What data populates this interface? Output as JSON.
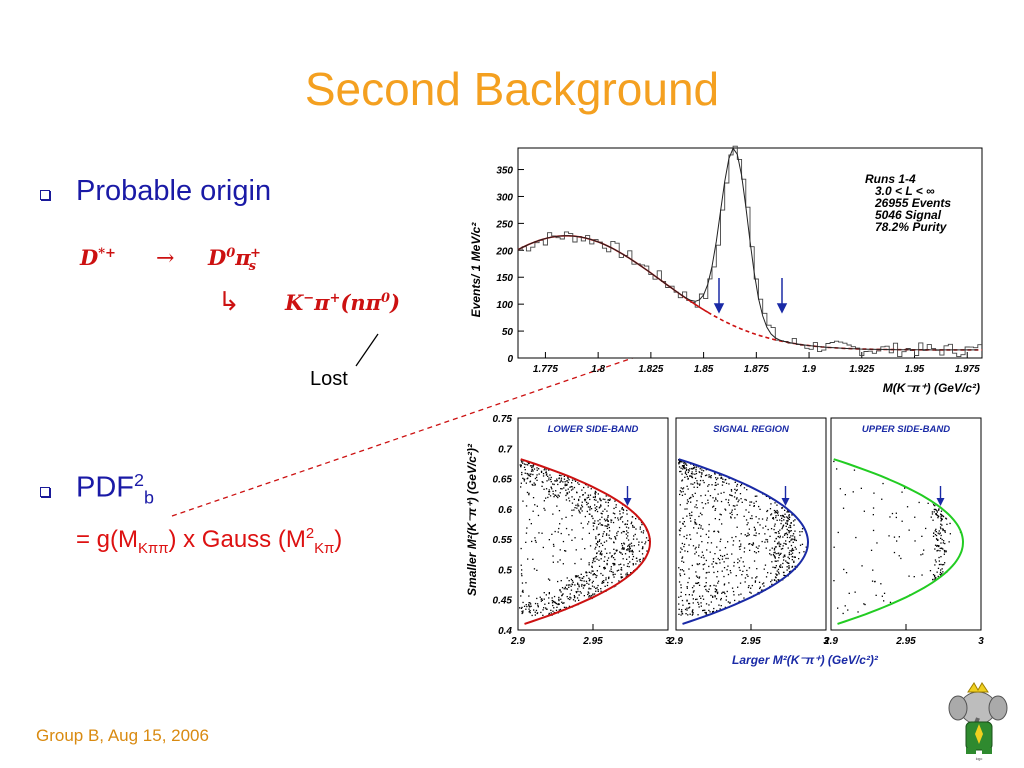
{
  "slide": {
    "title": "Second Background",
    "footer": "Group B, Aug 15, 2006"
  },
  "bullets": {
    "b1": "Probable origin",
    "b2_main": "PDF",
    "b2_sup": "2",
    "b2_sub": "b"
  },
  "decay": {
    "parent": "D",
    "parent_sup": "*+",
    "arrow": "→",
    "d0": "D",
    "d0_sup": "0",
    "pi": "π",
    "pi_sub": "s",
    "pi_sup": "+",
    "hook": "↳",
    "k": "K",
    "k_sup": "−",
    "pi2": "π",
    "pi2_sup": "+",
    "npi": "(nπ",
    "npi_sup": "0",
    "npi_end": ")",
    "lost_label": "Lost"
  },
  "formula": {
    "eq": "= g(M",
    "sub1": "Kππ",
    "mid": ") x Gauss (M",
    "sup2": "2",
    "sub2": "Kπ",
    "end": ")"
  },
  "mass_plot": {
    "ylabel": "Events/ 1 MeV/c²",
    "xlabel": "M(K⁻π⁺)  (GeV/c²)",
    "yticks": [
      "0",
      "50",
      "100",
      "150",
      "200",
      "250",
      "300",
      "350"
    ],
    "xticks": [
      "1.775",
      "1.8",
      "1.825",
      "1.85",
      "1.875",
      "1.9",
      "1.925",
      "1.95",
      "1.975"
    ],
    "info": [
      "Runs 1-4",
      "3.0 < L < ∞",
      "26955 Events",
      "5046 Signal",
      "78.2% Purity"
    ]
  },
  "dalitz": {
    "ylabel": "Smaller M²(K⁻π⁺)  (GeV/c²)²",
    "xlabel": "Larger M²(K⁻π⁺)  (GeV/c²)²",
    "yticks": [
      "0.4",
      "0.45",
      "0.5",
      "0.55",
      "0.6",
      "0.65",
      "0.7",
      "0.75"
    ],
    "panels": [
      {
        "label": "LOWER SIDE-BAND",
        "xticks": [
          "2.9",
          "2.95",
          "3"
        ],
        "color": "#cc1111"
      },
      {
        "label": "SIGNAL REGION",
        "xticks": [
          "2.9",
          "2.95",
          "3"
        ],
        "color": "#1a2aa6"
      },
      {
        "label": "UPPER SIDE-BAND",
        "xticks": [
          "2.9",
          "2.95",
          "3"
        ],
        "color": "#22cc22"
      }
    ]
  },
  "colors": {
    "title": "#f4a020",
    "bullet": "#1a1aa6",
    "formula": "#dd1111",
    "panel_label": "#1a2aa6"
  }
}
